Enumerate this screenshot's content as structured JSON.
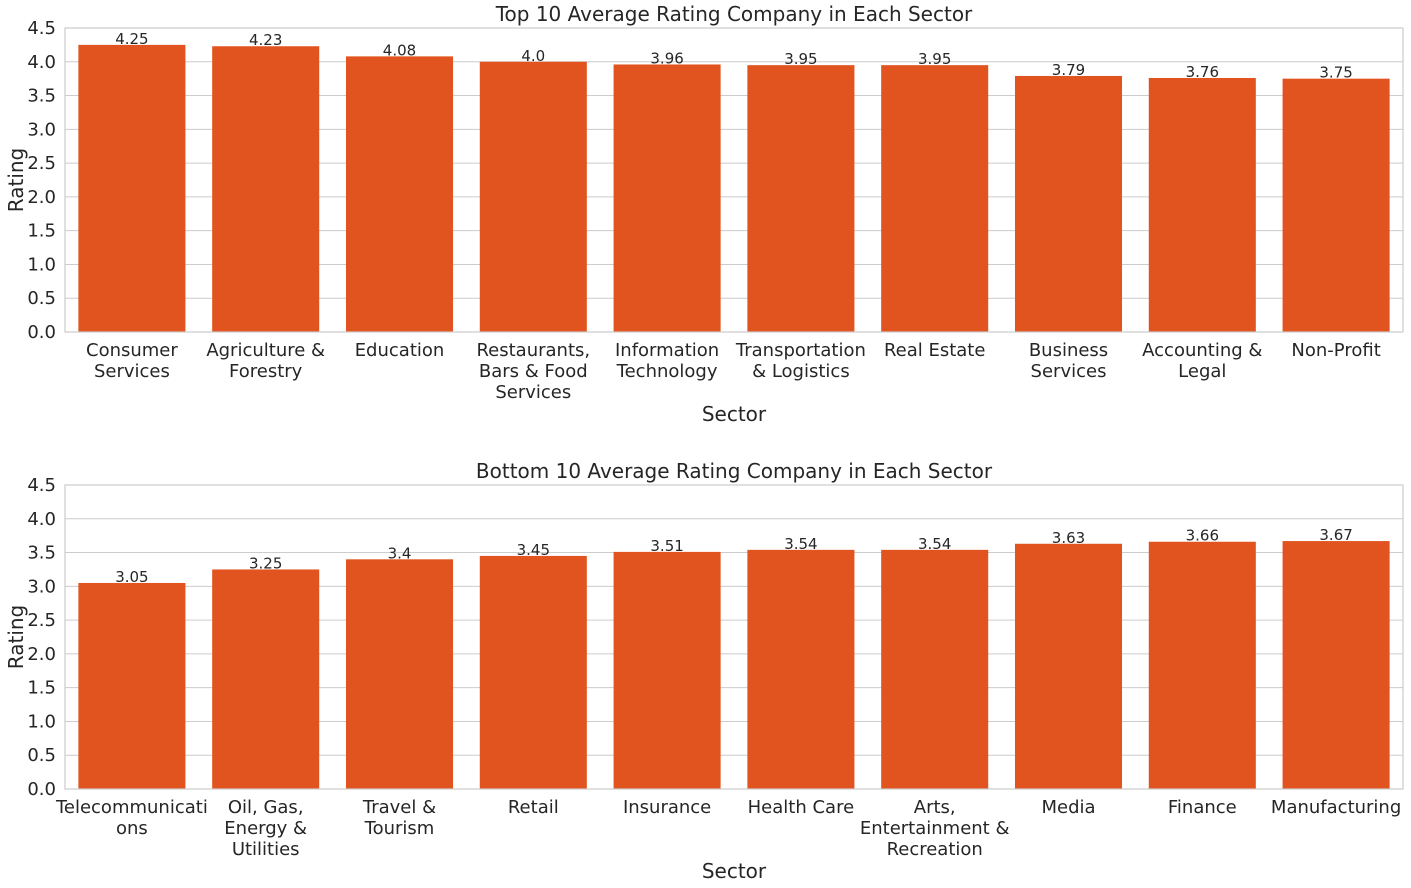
{
  "chart_data": [
    {
      "type": "bar",
      "title": "Top 10 Average Rating Company in Each Sector",
      "xlabel": "Sector",
      "ylabel": "Rating",
      "ylim": [
        0,
        4.5
      ],
      "yticks": [
        "0.0",
        "0.5",
        "1.0",
        "1.5",
        "2.0",
        "2.5",
        "3.0",
        "3.5",
        "4.0",
        "4.5"
      ],
      "grid": true,
      "color": "#e1541f",
      "categories": [
        [
          "Consumer",
          "Services"
        ],
        [
          "Agriculture &",
          "Forestry"
        ],
        [
          "Education"
        ],
        [
          "Restaurants,",
          "Bars & Food",
          "Services"
        ],
        [
          "Information",
          "Technology"
        ],
        [
          "Transportation",
          "& Logistics"
        ],
        [
          "Real Estate"
        ],
        [
          "Business",
          "Services"
        ],
        [
          "Accounting &",
          "Legal"
        ],
        [
          "Non-Profit"
        ]
      ],
      "values": [
        4.25,
        4.23,
        4.08,
        4.0,
        3.96,
        3.95,
        3.95,
        3.79,
        3.76,
        3.75
      ],
      "value_labels": [
        "4.25",
        "4.23",
        "4.08",
        "4.0",
        "3.96",
        "3.95",
        "3.95",
        "3.79",
        "3.76",
        "3.75"
      ]
    },
    {
      "type": "bar",
      "title": "Bottom 10 Average Rating Company in Each Sector",
      "xlabel": "Sector",
      "ylabel": "Rating",
      "ylim": [
        0,
        4.5
      ],
      "yticks": [
        "0.0",
        "0.5",
        "1.0",
        "1.5",
        "2.0",
        "2.5",
        "3.0",
        "3.5",
        "4.0",
        "4.5"
      ],
      "grid": true,
      "color": "#e1541f",
      "categories": [
        [
          "Telecommunicati",
          "ons"
        ],
        [
          "Oil, Gas,",
          "Energy &",
          "Utilities"
        ],
        [
          "Travel &",
          "Tourism"
        ],
        [
          "Retail"
        ],
        [
          "Insurance"
        ],
        [
          "Health Care"
        ],
        [
          "Arts,",
          "Entertainment &",
          "Recreation"
        ],
        [
          "Media"
        ],
        [
          "Finance"
        ],
        [
          "Manufacturing"
        ]
      ],
      "values": [
        3.05,
        3.25,
        3.4,
        3.45,
        3.51,
        3.54,
        3.54,
        3.63,
        3.66,
        3.67
      ],
      "value_labels": [
        "3.05",
        "3.25",
        "3.4",
        "3.45",
        "3.51",
        "3.54",
        "3.54",
        "3.63",
        "3.66",
        "3.67"
      ]
    }
  ]
}
